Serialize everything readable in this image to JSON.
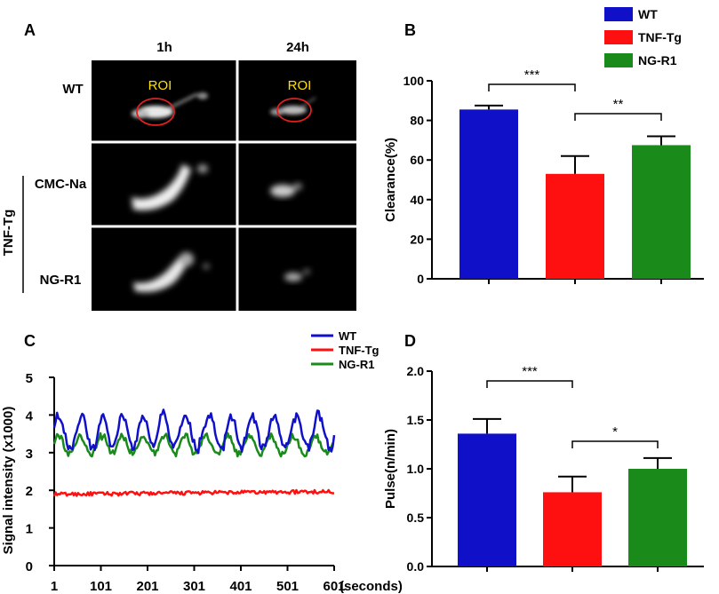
{
  "panels": {
    "A": {
      "letter": "A",
      "col_labels": [
        "1h",
        "24h"
      ],
      "row_labels": [
        "WT",
        "CMC-Na",
        "NG-R1"
      ],
      "group_label": "TNF-Tg",
      "roi_label": "ROI"
    },
    "B": {
      "letter": "B"
    },
    "C": {
      "letter": "C"
    },
    "D": {
      "letter": "D"
    }
  },
  "colors": {
    "wt": "#1010c8",
    "tnf": "#ff1010",
    "ngr1": "#1a8a1a"
  },
  "chart_data": [
    {
      "id": "B",
      "type": "bar",
      "categories": [
        "WT",
        "TNF-Tg",
        "NG-R1"
      ],
      "values": [
        85.5,
        53,
        67.5
      ],
      "errors": [
        2,
        9,
        4.5
      ],
      "legend": [
        "WT",
        "TNF-Tg",
        "NG-R1"
      ],
      "ylabel": "Clearance(%)",
      "xlabel": "",
      "ylim": [
        0,
        100
      ],
      "yticks": [
        "0",
        "20",
        "40",
        "60",
        "80",
        "100"
      ],
      "significance": [
        {
          "from": 0,
          "to": 1,
          "label": "***"
        },
        {
          "from": 1,
          "to": 2,
          "label": "**"
        }
      ]
    },
    {
      "id": "C",
      "type": "line",
      "legend": [
        "WT",
        "TNF-Tg",
        "NG-R1"
      ],
      "ylabel": "Signal  intensity (x1000)",
      "xlabel": "(seconds)",
      "ylim": [
        0,
        5
      ],
      "xlim": [
        1,
        601
      ],
      "yticks": [
        "0",
        "1",
        "2",
        "3",
        "4",
        "5"
      ],
      "xticks": [
        "1",
        "101",
        "201",
        "301",
        "401",
        "501",
        "601"
      ],
      "series": [
        {
          "name": "WT",
          "base": 3.55,
          "amplitude": 0.55,
          "min": 2.9,
          "max": 4.3
        },
        {
          "name": "TNF-Tg",
          "base": 1.93,
          "amplitude": 0.1,
          "min": 1.75,
          "max": 2.1
        },
        {
          "name": "NG-R1",
          "base": 3.2,
          "amplitude": 0.3,
          "min": 2.9,
          "max": 3.7
        }
      ]
    },
    {
      "id": "D",
      "type": "bar",
      "categories": [
        "WT",
        "TNF-Tg",
        "NG-R1"
      ],
      "values": [
        1.36,
        0.76,
        1.0
      ],
      "errors": [
        0.15,
        0.16,
        0.11
      ],
      "ylabel": "Pulse(n/min)",
      "xlabel": "",
      "ylim": [
        0,
        2.0
      ],
      "yticks": [
        "0.0",
        "0.5",
        "1.0",
        "1.5",
        "2.0"
      ],
      "significance": [
        {
          "from": 0,
          "to": 1,
          "label": "***"
        },
        {
          "from": 1,
          "to": 2,
          "label": "*"
        }
      ]
    }
  ]
}
